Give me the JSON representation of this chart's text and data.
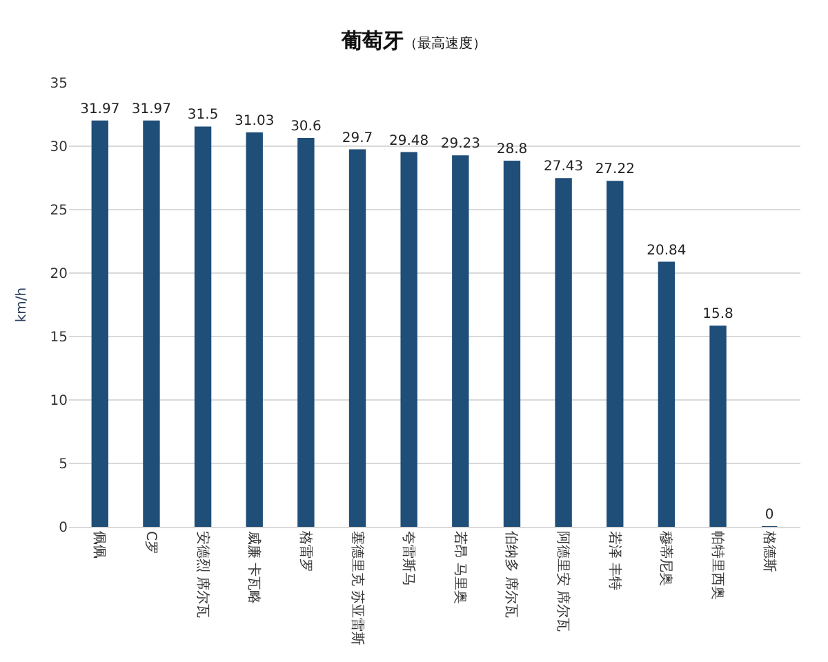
{
  "chart_data": {
    "type": "bar",
    "title": "葡萄牙",
    "subtitle": "（最高速度）",
    "ylabel": "km/h",
    "categories": [
      "佩佩",
      "C罗",
      "安德烈 席尔瓦",
      "威廉 卡瓦略",
      "格雷罗",
      "塞德里克 苏亚雷斯",
      "夸雷斯马",
      "若昂 马里奥",
      "伯纳多 席尔瓦",
      "阿德里安 席尔瓦",
      "若泽 丰特",
      "穆蒂尼奥",
      "帕特里西奥",
      "格德斯"
    ],
    "values": [
      31.97,
      31.97,
      31.5,
      31.03,
      30.6,
      29.7,
      29.48,
      29.23,
      28.8,
      27.43,
      27.22,
      20.84,
      15.8,
      0
    ],
    "color": "#1f4e79",
    "ylim": [
      0,
      35
    ],
    "yticks": [
      0,
      5,
      10,
      15,
      20,
      25,
      30,
      35
    ],
    "grid": "y",
    "data_labels": true,
    "legend": false
  }
}
